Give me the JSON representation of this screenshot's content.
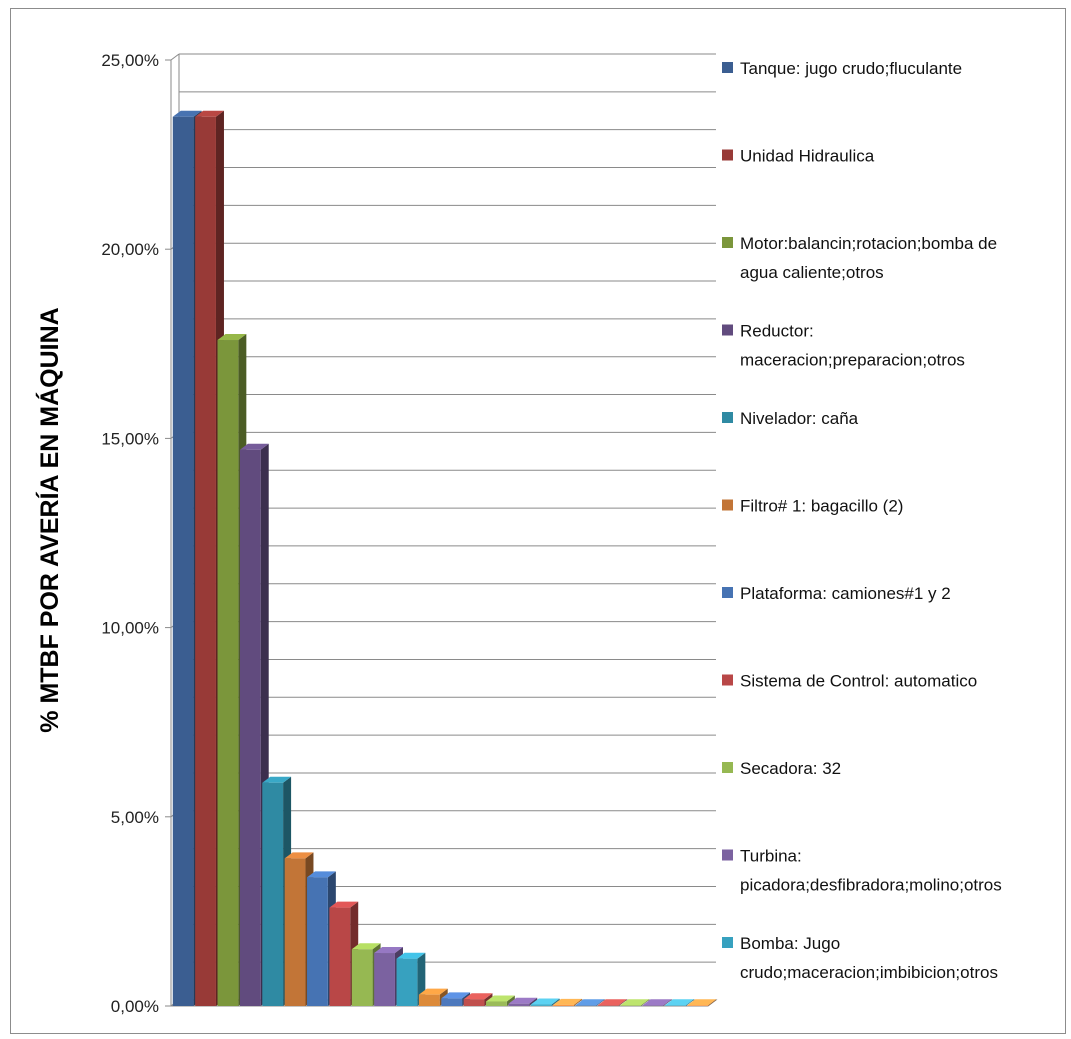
{
  "chart_data": {
    "type": "bar",
    "style": "3d-clustered",
    "ylabel": "% MTBF POR AVERÍA EN MÁQUINA",
    "xlabel": "",
    "ylim": [
      0,
      25
    ],
    "yticks": [
      "0,00%",
      "5,00%",
      "10,00%",
      "15,00%",
      "20,00%",
      "25,00%"
    ],
    "grid": true,
    "legend_position": "right",
    "series": [
      {
        "name": "Tanque: jugo crudo;fluculante",
        "value": 23.5,
        "color": "#3b5e91"
      },
      {
        "name": "Unidad Hidraulica",
        "value": 23.5,
        "color": "#983a37"
      },
      {
        "name": "Motor:balancin;rotacion;bomba de agua caliente;otros",
        "value": 17.6,
        "color": "#7b963b"
      },
      {
        "name": "Reductor: maceracion;preparacion;otros",
        "value": 14.7,
        "color": "#614b7e"
      },
      {
        "name": "Nivelador: caña",
        "value": 5.9,
        "color": "#2f8aa3"
      },
      {
        "name": "Filtro# 1:  bagacillo (2)",
        "value": 3.9,
        "color": "#c27537"
      },
      {
        "name": "Plataforma: camiones#1 y 2",
        "value": 3.4,
        "color": "#4673b3"
      },
      {
        "name": "Sistema de Control: automatico",
        "value": 2.6,
        "color": "#b94747"
      },
      {
        "name": "Secadora:  32",
        "value": 1.5,
        "color": "#96b852"
      },
      {
        "name": "Turbina: picadora;desfibradora;molino;otros",
        "value": 1.4,
        "color": "#7b62a0"
      },
      {
        "name": "Bomba:  Jugo crudo;maceracion;imbibicion;otros",
        "value": 1.25,
        "color": "#37a1bf"
      },
      {
        "name": "",
        "value": 0.3,
        "color": "#dc8a3a"
      },
      {
        "name": "",
        "value": 0.2,
        "color": "#4d79bd"
      },
      {
        "name": "",
        "value": 0.18,
        "color": "#c0504d"
      },
      {
        "name": "",
        "value": 0.12,
        "color": "#9bbb59"
      },
      {
        "name": "",
        "value": 0.06,
        "color": "#8064a2"
      },
      {
        "name": "",
        "value": 0.04,
        "color": "#4bacc6"
      },
      {
        "name": "",
        "value": 0.03,
        "color": "#f79646"
      },
      {
        "name": "",
        "value": 0.02,
        "color": "#4f81bd"
      },
      {
        "name": "",
        "value": 0.02,
        "color": "#c0504d"
      },
      {
        "name": "",
        "value": 0.02,
        "color": "#9bbb59"
      },
      {
        "name": "",
        "value": 0.02,
        "color": "#8064a2"
      },
      {
        "name": "",
        "value": 0.02,
        "color": "#4bacc6"
      },
      {
        "name": "",
        "value": 0.02,
        "color": "#f79646"
      }
    ],
    "legend": [
      {
        "lines": [
          "Tanque: jugo crudo;fluculante"
        ],
        "color": "#3b5e91"
      },
      {
        "lines": [
          "Unidad Hidraulica"
        ],
        "color": "#983a37"
      },
      {
        "lines": [
          "Motor:balancin;rotacion;bomba de",
          "agua caliente;otros"
        ],
        "color": "#7b963b"
      },
      {
        "lines": [
          "Reductor:",
          "maceracion;preparacion;otros"
        ],
        "color": "#614b7e"
      },
      {
        "lines": [
          "Nivelador: caña"
        ],
        "color": "#2f8aa3"
      },
      {
        "lines": [
          "Filtro# 1:  bagacillo (2)"
        ],
        "color": "#c27537"
      },
      {
        "lines": [
          "Plataforma: camiones#1 y 2"
        ],
        "color": "#4673b3"
      },
      {
        "lines": [
          "Sistema de Control: automatico"
        ],
        "color": "#b94747"
      },
      {
        "lines": [
          "Secadora:  32"
        ],
        "color": "#96b852"
      },
      {
        "lines": [
          "Turbina:",
          "picadora;desfibradora;molino;otros"
        ],
        "color": "#7b62a0"
      },
      {
        "lines": [
          "Bomba:  Jugo",
          "crudo;maceracion;imbibicion;otros"
        ],
        "color": "#37a1bf"
      }
    ]
  }
}
